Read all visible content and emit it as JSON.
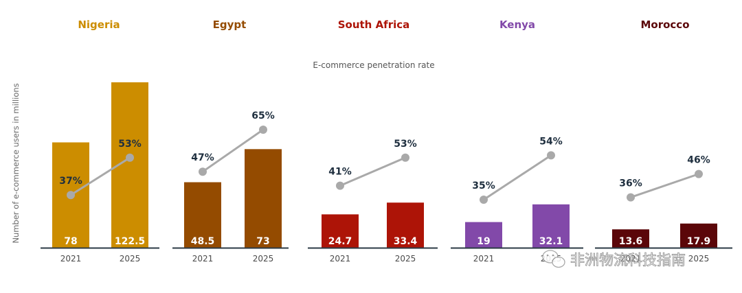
{
  "chart_data": {
    "type": "bar",
    "subtitle": "E-commerce penetration rate",
    "ylabel": "Number of e-commerce users in millions",
    "ylim": [
      0,
      125
    ],
    "penetration_ylim": [
      0,
      100
    ],
    "years": [
      "2021",
      "2025"
    ],
    "countries": [
      {
        "name": "Nigeria",
        "color": "#cc8d00",
        "users": [
          78,
          122.5
        ],
        "users_labels": [
          "78",
          "122.5"
        ],
        "penetration": [
          37,
          53
        ],
        "penetration_labels": [
          "37%",
          "53%"
        ]
      },
      {
        "name": "Egypt",
        "color": "#944b00",
        "users": [
          48.5,
          73
        ],
        "users_labels": [
          "48.5",
          "73"
        ],
        "penetration": [
          47,
          65
        ],
        "penetration_labels": [
          "47%",
          "65%"
        ]
      },
      {
        "name": "South Africa",
        "color": "#ad1407",
        "users": [
          24.7,
          33.4
        ],
        "users_labels": [
          "24.7",
          "33.4"
        ],
        "penetration": [
          41,
          53
        ],
        "penetration_labels": [
          "41%",
          "53%"
        ]
      },
      {
        "name": "Kenya",
        "color": "#8249a9",
        "users": [
          19,
          32.1
        ],
        "users_labels": [
          "19",
          "32.1"
        ],
        "penetration": [
          35,
          54
        ],
        "penetration_labels": [
          "35%",
          "54%"
        ]
      },
      {
        "name": "Morocco",
        "color": "#5b0609",
        "users": [
          13.6,
          17.9
        ],
        "users_labels": [
          "13.6",
          "17.9"
        ],
        "penetration": [
          36,
          46
        ],
        "penetration_labels": [
          "36%",
          "46%"
        ]
      }
    ],
    "line_color": "#a9a9a9",
    "axis_color": "#2b3a44"
  },
  "watermark": {
    "text": "非洲物流科技指南",
    "icon": "wechat-icon"
  }
}
